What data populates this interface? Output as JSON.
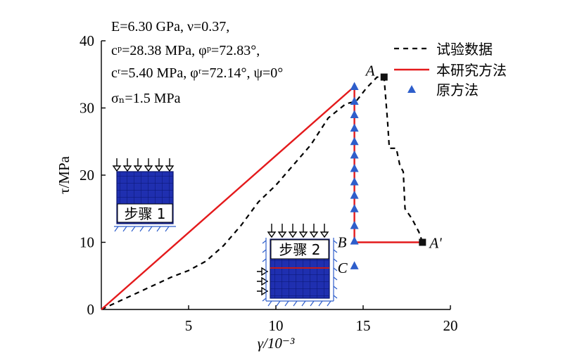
{
  "chart_data": {
    "type": "line",
    "xlabel": "γ/10⁻³",
    "ylabel": "τ/MPa",
    "xlim": [
      0,
      20
    ],
    "ylim": [
      0,
      40
    ],
    "x_ticks": [
      "5",
      "10",
      "15",
      "20"
    ],
    "y_ticks": [
      "0",
      "10",
      "20",
      "30",
      "40"
    ],
    "params": [
      "E=6.30 GPa, ν=0.37,",
      "cᵖ=28.38 MPa, φᵖ=72.83°,",
      "cʳ=5.40 MPa, φʳ=72.14°, ψ=0°",
      "σₙ=1.5 MPa"
    ],
    "series": [
      {
        "name": "试验数据",
        "style": "dashed",
        "color": "#000000",
        "x": [
          0,
          1,
          2,
          3,
          4,
          5,
          6,
          7,
          8,
          9,
          10,
          11,
          12,
          13,
          14,
          14.6,
          15.2,
          15.8,
          16.2,
          16.4,
          16.5,
          16.9,
          17.1,
          17.3,
          17.4,
          17.8,
          18.2,
          18.4
        ],
        "y": [
          0,
          1.2,
          2.4,
          3.6,
          4.8,
          5.8,
          7.2,
          9.5,
          12.5,
          16,
          18.5,
          21.5,
          24.5,
          28.5,
          30.6,
          31,
          33,
          34.6,
          34.5,
          28,
          24,
          24,
          21.5,
          20.5,
          15,
          13.5,
          11.5,
          10
        ]
      },
      {
        "name": "本研究方法",
        "style": "solid",
        "color": "#e41a1c",
        "x": [
          0,
          14.5,
          14.5,
          18.4
        ],
        "y": [
          0,
          33.2,
          10,
          10
        ]
      },
      {
        "name": "原方法",
        "style": "markers",
        "marker": "triangle",
        "color": "#2e5ecb",
        "x": [
          14.5,
          14.5,
          14.5,
          14.5,
          14.5,
          14.5,
          14.5,
          14.5,
          14.5,
          14.5,
          14.5,
          14.5,
          14.5
        ],
        "y": [
          33.2,
          31,
          29,
          27,
          25,
          23,
          21,
          19,
          17,
          15,
          12.5,
          10.2,
          6.5
        ]
      }
    ],
    "points": [
      {
        "label": "A",
        "x": 16.2,
        "y": 34.6
      },
      {
        "label": "A'",
        "x": 18.4,
        "y": 10
      },
      {
        "label": "B",
        "x": 14.5,
        "y": 10
      },
      {
        "label": "C",
        "x": 14.5,
        "y": 6.5
      }
    ],
    "insets": [
      {
        "label": "步骤 1"
      },
      {
        "label": "步骤 2"
      }
    ],
    "legend_position": "top-right"
  }
}
